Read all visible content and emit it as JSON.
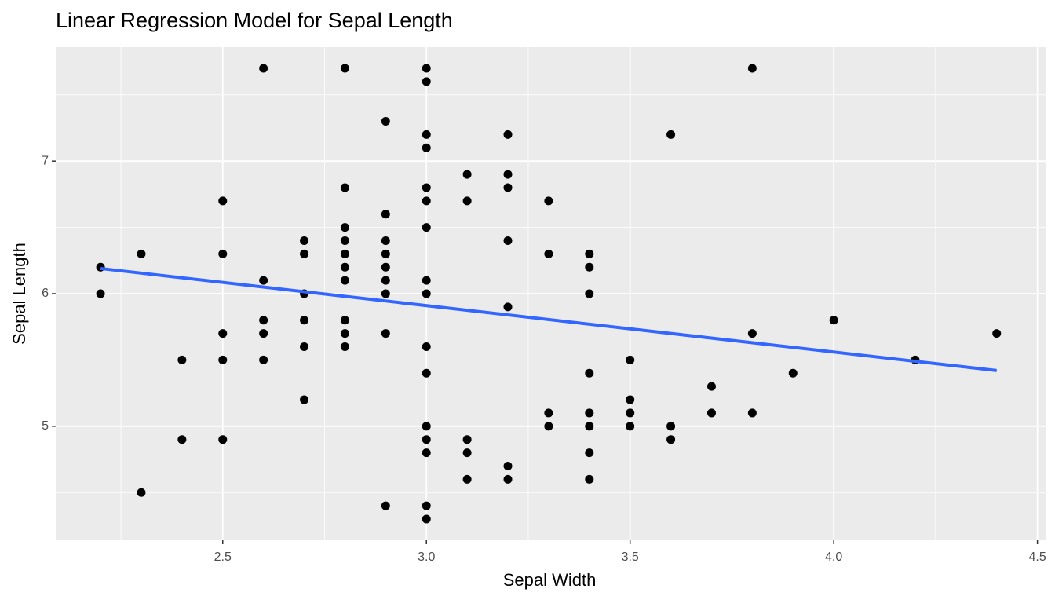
{
  "chart_data": {
    "type": "scatter",
    "title": "Linear Regression Model for Sepal Length",
    "x_label": "Sepal Width",
    "y_label": "Sepal Length",
    "xlim": [
      2.09,
      4.52
    ],
    "ylim": [
      4.14,
      7.86
    ],
    "xticks": [
      2.5,
      {
        "value": 3,
        "label": "3.0"
      },
      3.5,
      {
        "value": 4,
        "label": "4.0"
      },
      4.5
    ],
    "yticks": [
      5,
      6,
      7
    ],
    "x_minor_ticks": [
      2.25,
      2.75,
      3.25,
      3.75,
      4.25
    ],
    "y_minor_ticks": [
      4.5,
      5.5,
      6.5,
      7.5
    ],
    "grid": true,
    "series": [
      {
        "type": "scatter",
        "color": "#000000",
        "x": [
          2.2,
          2.2,
          2.3,
          2.3,
          2.4,
          2.4,
          2.5,
          2.5,
          2.5,
          2.5,
          2.5,
          2.6,
          2.6,
          2.6,
          2.6,
          2.6,
          2.7,
          2.7,
          2.7,
          2.7,
          2.7,
          2.7,
          2.8,
          2.8,
          2.8,
          2.8,
          2.8,
          2.8,
          2.8,
          2.8,
          2.8,
          2.8,
          2.9,
          2.9,
          2.9,
          2.9,
          2.9,
          2.9,
          2.9,
          2.9,
          2.9,
          3.0,
          3.0,
          3.0,
          3.0,
          3.0,
          3.0,
          3.0,
          3.0,
          3.0,
          3.0,
          3.0,
          3.0,
          3.0,
          3.0,
          3.0,
          3.0,
          3.1,
          3.1,
          3.1,
          3.1,
          3.1,
          3.2,
          3.2,
          3.2,
          3.2,
          3.2,
          3.2,
          3.2,
          3.3,
          3.3,
          3.3,
          3.3,
          3.4,
          3.4,
          3.4,
          3.4,
          3.4,
          3.4,
          3.4,
          3.4,
          3.5,
          3.5,
          3.5,
          3.5,
          3.6,
          3.6,
          3.6,
          3.7,
          3.7,
          3.8,
          3.8,
          3.8,
          3.9,
          4.0,
          4.2,
          4.4
        ],
        "values": [
          6.2,
          6.0,
          6.3,
          4.5,
          5.5,
          4.9,
          6.7,
          6.3,
          5.7,
          5.5,
          4.9,
          7.7,
          6.1,
          5.8,
          5.7,
          5.5,
          6.4,
          6.3,
          6.0,
          5.8,
          5.6,
          5.2,
          7.7,
          6.8,
          6.5,
          6.4,
          6.3,
          6.2,
          6.1,
          5.8,
          5.7,
          5.6,
          7.3,
          6.6,
          6.4,
          6.3,
          6.2,
          6.1,
          6.0,
          5.7,
          4.4,
          7.7,
          7.6,
          7.2,
          7.1,
          6.8,
          6.7,
          6.5,
          6.1,
          6.0,
          5.6,
          5.4,
          5.0,
          4.9,
          4.8,
          4.4,
          4.3,
          6.9,
          6.7,
          4.9,
          4.8,
          4.6,
          7.2,
          6.9,
          6.8,
          6.4,
          5.9,
          4.7,
          4.6,
          6.7,
          6.3,
          5.1,
          5.0,
          6.3,
          6.2,
          6.0,
          5.4,
          5.1,
          5.0,
          4.8,
          4.6,
          5.5,
          5.2,
          5.1,
          5.0,
          7.2,
          5.0,
          4.9,
          5.3,
          5.1,
          7.7,
          5.7,
          5.1,
          5.4,
          5.8,
          5.5,
          5.7
        ]
      },
      {
        "type": "line",
        "color": "#3366ff",
        "x": [
          2.2,
          4.4
        ],
        "values": [
          6.19,
          5.42
        ]
      }
    ]
  }
}
